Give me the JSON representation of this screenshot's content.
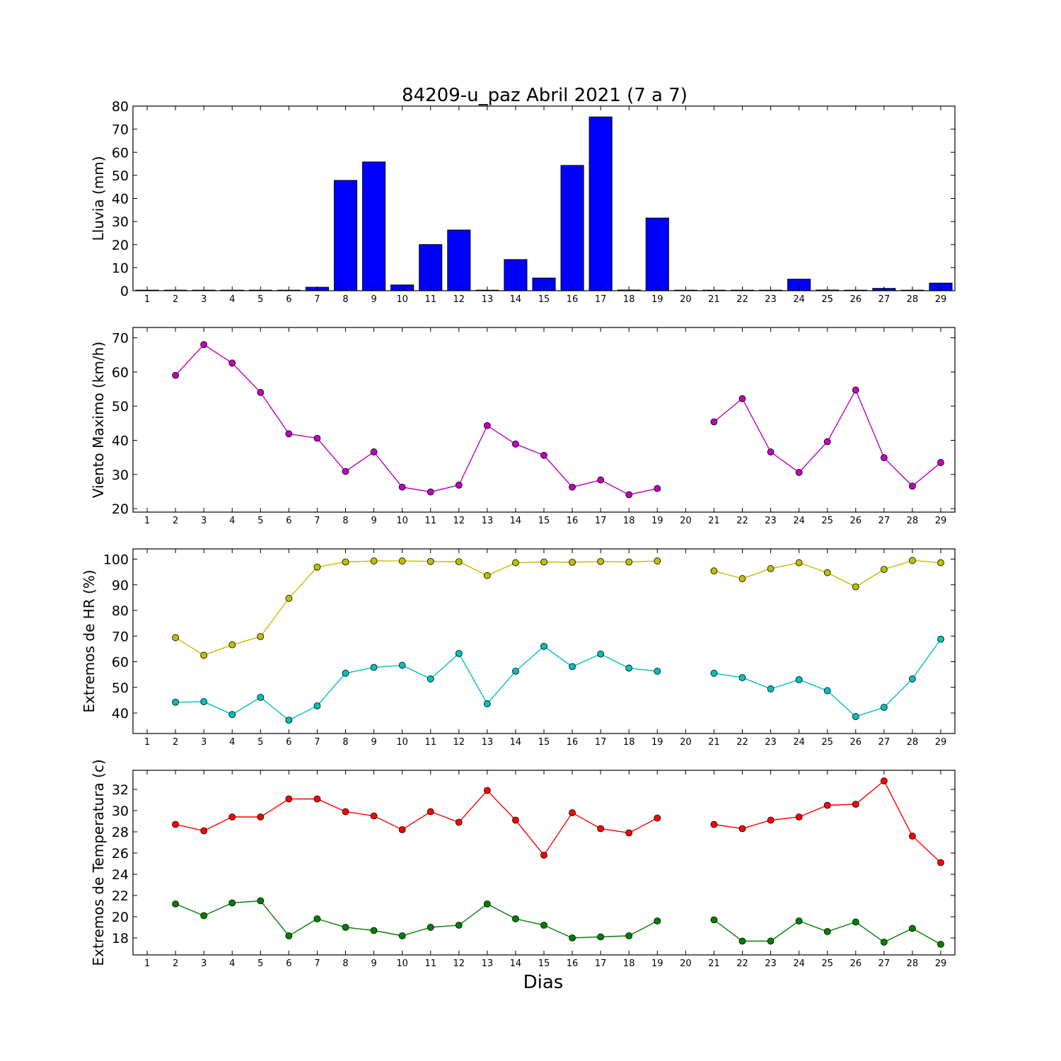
{
  "figure": {
    "title": "84209-u_paz Abril 2021  (7 a 7)",
    "xlabel": "Dias"
  },
  "chart_data": [
    {
      "type": "bar",
      "name": "lluvia",
      "ylabel": "Lluvia (mm)",
      "ylim": [
        0,
        80
      ],
      "yticks": [
        0,
        10,
        20,
        30,
        40,
        50,
        60,
        70,
        80
      ],
      "categories": [
        1,
        2,
        3,
        4,
        5,
        6,
        7,
        8,
        9,
        10,
        11,
        12,
        13,
        14,
        15,
        16,
        17,
        18,
        19,
        20,
        21,
        22,
        23,
        24,
        25,
        26,
        27,
        28,
        29
      ],
      "xlim": [
        0.5,
        29.5
      ],
      "color": "#0000ff",
      "values": [
        0,
        0,
        0,
        0,
        0,
        0,
        1.5,
        47.8,
        55.8,
        2.5,
        20.0,
        26.3,
        0,
        13.5,
        5.5,
        54.3,
        75.3,
        0.3,
        31.5,
        0,
        0,
        0.2,
        0,
        5.0,
        0.3,
        0,
        1.0,
        0,
        3.3
      ],
      "grid": false
    },
    {
      "type": "line",
      "name": "viento",
      "ylabel": "Viento Maximo (km/h)",
      "ylim": [
        19,
        73
      ],
      "yticks": [
        20,
        30,
        40,
        50,
        60,
        70
      ],
      "x": [
        1,
        2,
        3,
        4,
        5,
        6,
        7,
        8,
        9,
        10,
        11,
        12,
        13,
        14,
        15,
        16,
        17,
        18,
        19,
        20,
        21,
        22,
        23,
        24,
        25,
        26,
        27,
        28,
        29
      ],
      "xlim": [
        0.5,
        29.5
      ],
      "series": [
        {
          "color": "#bf00bf",
          "values": [
            null,
            59.0,
            68.0,
            62.6,
            54.0,
            41.9,
            40.6,
            30.9,
            36.6,
            26.3,
            24.9,
            26.9,
            44.3,
            38.9,
            35.6,
            26.3,
            28.4,
            24.1,
            25.9,
            null,
            45.4,
            52.2,
            36.6,
            30.6,
            39.6,
            54.7,
            34.9,
            26.6,
            33.5
          ]
        }
      ],
      "grid": false
    },
    {
      "type": "line",
      "name": "humedad",
      "ylabel": "Extremos de HR (%)",
      "ylim": [
        32,
        104
      ],
      "yticks": [
        40,
        50,
        60,
        70,
        80,
        90,
        100
      ],
      "x": [
        1,
        2,
        3,
        4,
        5,
        6,
        7,
        8,
        9,
        10,
        11,
        12,
        13,
        14,
        15,
        16,
        17,
        18,
        19,
        20,
        21,
        22,
        23,
        24,
        25,
        26,
        27,
        28,
        29
      ],
      "xlim": [
        0.5,
        29.5
      ],
      "series": [
        {
          "color": "#bfbf00",
          "values": [
            null,
            69.4,
            62.5,
            66.6,
            69.8,
            84.7,
            96.9,
            98.9,
            99.3,
            99.3,
            99.1,
            99.0,
            93.6,
            98.6,
            98.9,
            98.8,
            99.1,
            98.9,
            99.3,
            null,
            95.4,
            92.4,
            96.3,
            98.6,
            94.7,
            89.2,
            96.0,
            99.5,
            98.6
          ]
        },
        {
          "color": "#00bfbf",
          "values": [
            null,
            44.2,
            44.4,
            39.4,
            46.1,
            37.2,
            42.8,
            55.5,
            57.8,
            58.6,
            53.3,
            63.2,
            43.6,
            56.3,
            66.0,
            58.1,
            63.0,
            57.5,
            56.3,
            null,
            55.5,
            53.8,
            49.4,
            53.0,
            48.7,
            38.6,
            42.2,
            53.3,
            68.8
          ]
        }
      ],
      "grid": false
    },
    {
      "type": "line",
      "name": "temperatura",
      "ylabel": "Extremos de Temperatura (c)",
      "ylim": [
        16.4,
        33.8
      ],
      "yticks": [
        18,
        20,
        22,
        24,
        26,
        28,
        30,
        32
      ],
      "x": [
        1,
        2,
        3,
        4,
        5,
        6,
        7,
        8,
        9,
        10,
        11,
        12,
        13,
        14,
        15,
        16,
        17,
        18,
        19,
        20,
        21,
        22,
        23,
        24,
        25,
        26,
        27,
        28,
        29
      ],
      "xlim": [
        0.5,
        29.5
      ],
      "series": [
        {
          "color": "#ff0000",
          "values": [
            null,
            28.7,
            28.1,
            29.4,
            29.4,
            31.1,
            31.1,
            29.9,
            29.5,
            28.2,
            29.9,
            28.9,
            31.9,
            29.1,
            25.8,
            29.8,
            28.3,
            27.9,
            29.3,
            null,
            28.7,
            28.3,
            29.1,
            29.4,
            30.5,
            30.6,
            32.8,
            27.6,
            25.1
          ]
        },
        {
          "color": "#008000",
          "values": [
            null,
            21.2,
            20.1,
            21.3,
            21.5,
            18.2,
            19.8,
            19.0,
            18.7,
            18.2,
            19.0,
            19.2,
            21.2,
            19.8,
            19.2,
            18.0,
            18.1,
            18.2,
            19.6,
            null,
            19.7,
            17.7,
            17.7,
            19.6,
            18.6,
            19.5,
            17.6,
            18.9,
            17.4
          ]
        }
      ],
      "grid": false
    }
  ]
}
